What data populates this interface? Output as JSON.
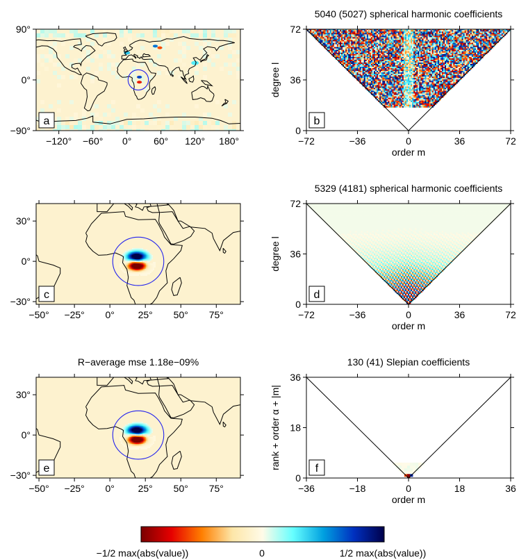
{
  "colors": {
    "frame": "#000000",
    "circle": "#2222ee",
    "map_background": "#fdf2cf",
    "land_outline": "#000000"
  },
  "colorbar": {
    "labels": [
      "−1/2 max(abs(value))",
      "0",
      "1/2 max(abs(value))"
    ],
    "stops": [
      "#7a0000",
      "#e60000",
      "#ff7f00",
      "#fde6a8",
      "#fffbe8",
      "#66ffff",
      "#00a0e0",
      "#0030c0",
      "#00004a"
    ]
  },
  "chart_data": [
    {
      "id": "a",
      "type": "heatmap",
      "panel_label": "a",
      "title": "",
      "xticks": [
        "−120°",
        "−60°",
        "0°",
        "60°",
        "120°",
        "180°"
      ],
      "xtick_values": [
        -120,
        -60,
        0,
        60,
        120,
        180
      ],
      "yticks": [
        "90°",
        "0°",
        "−90°"
      ],
      "ytick_values": [
        90,
        0,
        -90
      ],
      "xlim": [
        -160,
        200
      ],
      "ylim": [
        -90,
        90
      ],
      "circle": {
        "center_lon": 20,
        "center_lat": 0,
        "radius_deg": 18
      }
    },
    {
      "id": "b",
      "type": "heatmap",
      "panel_label": "b",
      "title": "5040 (5027) spherical harmonic coefficients",
      "xlabel": "order m",
      "ylabel": "degree l",
      "xticks": [
        "−72",
        "−36",
        "0",
        "36",
        "72"
      ],
      "xtick_values": [
        -72,
        -36,
        0,
        36,
        72
      ],
      "yticks": [
        "72",
        "36",
        "0"
      ],
      "ytick_values": [
        72,
        36,
        0
      ],
      "xlim": [
        -72,
        72
      ],
      "ylim": [
        0,
        72
      ]
    },
    {
      "id": "c",
      "type": "heatmap",
      "panel_label": "c",
      "title": "",
      "xticks": [
        "−50°",
        "−25°",
        "0°",
        "25°",
        "50°",
        "75°"
      ],
      "xtick_values": [
        -50,
        -25,
        0,
        25,
        50,
        75
      ],
      "yticks": [
        "30°",
        "0°",
        "−30°"
      ],
      "ytick_values": [
        30,
        0,
        -30
      ],
      "xlim": [
        -52,
        92
      ],
      "ylim": [
        -32,
        43
      ],
      "circle": {
        "center_lon": 20,
        "center_lat": 0,
        "radius_deg": 18
      }
    },
    {
      "id": "d",
      "type": "heatmap",
      "panel_label": "d",
      "title": "5329 (4181) spherical harmonic coefficients",
      "xlabel": "order m",
      "ylabel": "degree l",
      "xticks": [
        "−72",
        "−36",
        "0",
        "36",
        "72"
      ],
      "xtick_values": [
        -72,
        -36,
        0,
        36,
        72
      ],
      "yticks": [
        "72",
        "36",
        "0"
      ],
      "ytick_values": [
        72,
        36,
        0
      ],
      "xlim": [
        -72,
        72
      ],
      "ylim": [
        0,
        72
      ]
    },
    {
      "id": "e",
      "type": "heatmap",
      "panel_label": "e",
      "title": "R−average mse 1.18e−09%",
      "xticks": [
        "−50°",
        "−25°",
        "0°",
        "25°",
        "50°",
        "75°"
      ],
      "xtick_values": [
        -50,
        -25,
        0,
        25,
        50,
        75
      ],
      "yticks": [
        "30°",
        "0°",
        "−30°"
      ],
      "ytick_values": [
        30,
        0,
        -30
      ],
      "xlim": [
        -52,
        92
      ],
      "ylim": [
        -32,
        43
      ],
      "circle": {
        "center_lon": 20,
        "center_lat": 0,
        "radius_deg": 18
      }
    },
    {
      "id": "f",
      "type": "heatmap",
      "panel_label": "f",
      "title": "130 (41) Slepian coefficients",
      "xlabel": "order m",
      "ylabel": "rank + order α + |m|",
      "xticks": [
        "−36",
        "−18",
        "0",
        "18",
        "36"
      ],
      "xtick_values": [
        -36,
        -18,
        0,
        18,
        36
      ],
      "yticks": [
        "36",
        "18",
        "0"
      ],
      "ytick_values": [
        36,
        18,
        0
      ],
      "xlim": [
        -36,
        36
      ],
      "ylim": [
        0,
        36
      ]
    }
  ]
}
